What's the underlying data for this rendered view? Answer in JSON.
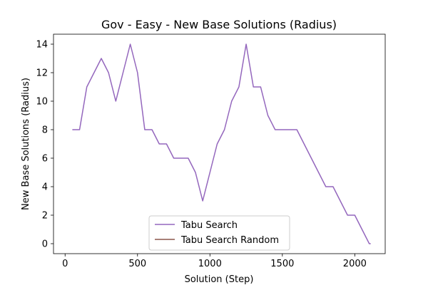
{
  "chart_data": {
    "type": "line",
    "title": "Gov - Easy - New Base Solutions (Radius)",
    "xlabel": "Solution (Step)",
    "ylabel": "New Base Solutions (Radius)",
    "xlim": [
      -80,
      2210
    ],
    "ylim": [
      -0.7,
      14.7
    ],
    "xticks": [
      0,
      500,
      1000,
      1500,
      2000
    ],
    "yticks": [
      0,
      2,
      4,
      6,
      8,
      10,
      12,
      14
    ],
    "grid": false,
    "legend_position": "lower center",
    "series": [
      {
        "name": "Tabu Search",
        "color": "#9467bd",
        "points": [
          [
            50,
            8
          ],
          [
            100,
            8
          ],
          [
            150,
            11
          ],
          [
            200,
            12
          ],
          [
            250,
            13
          ],
          [
            300,
            12
          ],
          [
            350,
            10
          ],
          [
            400,
            12
          ],
          [
            450,
            14
          ],
          [
            500,
            12
          ],
          [
            550,
            8
          ],
          [
            600,
            8
          ],
          [
            650,
            7
          ],
          [
            700,
            7
          ],
          [
            750,
            6
          ],
          [
            800,
            6
          ],
          [
            850,
            6
          ],
          [
            900,
            5
          ],
          [
            950,
            3
          ],
          [
            1000,
            5
          ],
          [
            1050,
            7
          ],
          [
            1100,
            8
          ],
          [
            1150,
            10
          ],
          [
            1200,
            11
          ],
          [
            1250,
            14
          ],
          [
            1300,
            11
          ],
          [
            1350,
            11
          ],
          [
            1400,
            9
          ],
          [
            1450,
            8
          ],
          [
            1500,
            8
          ],
          [
            1550,
            8
          ],
          [
            1600,
            8
          ],
          [
            1650,
            7
          ],
          [
            1700,
            6
          ],
          [
            1750,
            5
          ],
          [
            1800,
            4
          ],
          [
            1850,
            4
          ],
          [
            1900,
            3
          ],
          [
            1950,
            2
          ],
          [
            2000,
            2
          ],
          [
            2050,
            1
          ],
          [
            2100,
            0
          ],
          [
            2110,
            0
          ]
        ]
      },
      {
        "name": "Tabu Search Random",
        "color": "#8c564b",
        "points": []
      }
    ]
  }
}
